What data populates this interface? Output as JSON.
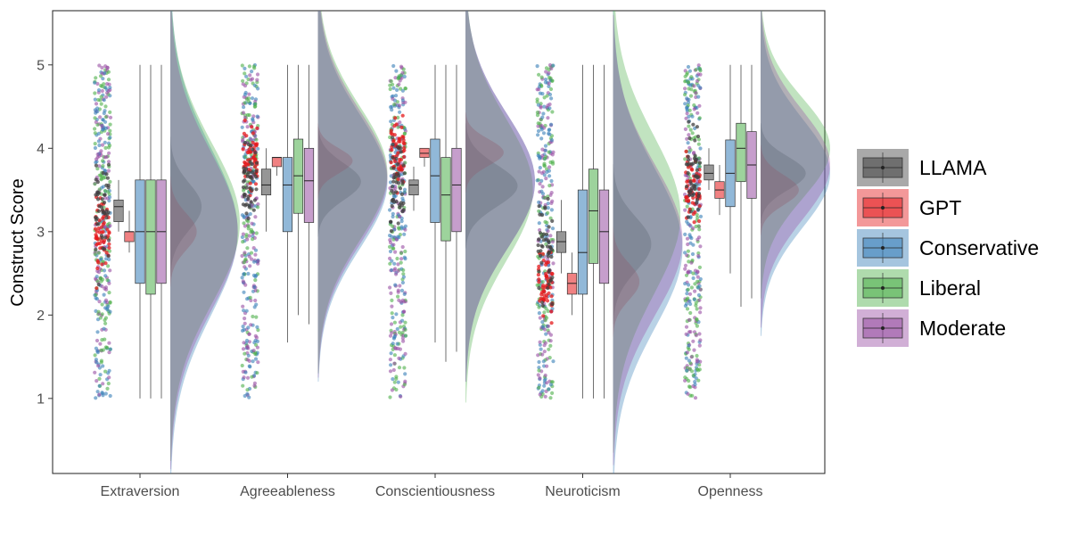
{
  "chart_data": {
    "type": "raincloud",
    "ylabel": "Construct Score",
    "xlabel": "",
    "ylim": [
      0.1,
      5.65
    ],
    "yticks": [
      1,
      2,
      3,
      4,
      5
    ],
    "grid": false,
    "legend_position": "right",
    "categories": [
      "Extraversion",
      "Agreeableness",
      "Conscientiousness",
      "Neuroticism",
      "Openness"
    ],
    "groups": [
      {
        "name": "LLAMA",
        "color": "#404040"
      },
      {
        "name": "GPT",
        "color": "#e41a1c"
      },
      {
        "name": "Conservative",
        "color": "#377eb8"
      },
      {
        "name": "Liberal",
        "color": "#4daf4a"
      },
      {
        "name": "Moderate",
        "color": "#984ea3"
      }
    ],
    "boxes": {
      "Extraversion": [
        {
          "min": 3.0,
          "q1": 3.12,
          "median": 3.3,
          "q3": 3.38,
          "max": 3.62
        },
        {
          "min": 2.75,
          "q1": 2.88,
          "median": 3.0,
          "q3": 3.0,
          "max": 3.25
        },
        {
          "min": 1.0,
          "q1": 2.38,
          "median": 3.0,
          "q3": 3.62,
          "max": 5.0
        },
        {
          "min": 1.0,
          "q1": 2.25,
          "median": 3.0,
          "q3": 3.62,
          "max": 5.0
        },
        {
          "min": 1.0,
          "q1": 2.38,
          "median": 3.0,
          "q3": 3.62,
          "max": 5.0
        }
      ],
      "Agreeableness": [
        {
          "min": 3.0,
          "q1": 3.44,
          "median": 3.56,
          "q3": 3.75,
          "max": 4.0
        },
        {
          "min": 3.67,
          "q1": 3.78,
          "median": 3.89,
          "q3": 3.89,
          "max": 3.89
        },
        {
          "min": 1.67,
          "q1": 3.0,
          "median": 3.56,
          "q3": 3.89,
          "max": 5.0
        },
        {
          "min": 2.0,
          "q1": 3.22,
          "median": 3.67,
          "q3": 4.11,
          "max": 5.0
        },
        {
          "min": 1.89,
          "q1": 3.11,
          "median": 3.61,
          "q3": 4.0,
          "max": 5.0
        }
      ],
      "Conscientiousness": [
        {
          "min": 3.25,
          "q1": 3.44,
          "median": 3.56,
          "q3": 3.62,
          "max": 3.78
        },
        {
          "min": 3.78,
          "q1": 3.89,
          "median": 3.94,
          "q3": 4.0,
          "max": 4.0
        },
        {
          "min": 1.67,
          "q1": 3.11,
          "median": 3.67,
          "q3": 4.11,
          "max": 5.0
        },
        {
          "min": 1.44,
          "q1": 2.89,
          "median": 3.44,
          "q3": 3.89,
          "max": 5.0
        },
        {
          "min": 1.56,
          "q1": 3.0,
          "median": 3.56,
          "q3": 4.0,
          "max": 5.0
        }
      ],
      "Neuroticism": [
        {
          "min": 2.5,
          "q1": 2.75,
          "median": 2.88,
          "q3": 3.0,
          "max": 3.38
        },
        {
          "min": 2.0,
          "q1": 2.25,
          "median": 2.38,
          "q3": 2.5,
          "max": 2.75
        },
        {
          "min": 1.0,
          "q1": 2.25,
          "median": 2.75,
          "q3": 3.5,
          "max": 5.0
        },
        {
          "min": 1.0,
          "q1": 2.62,
          "median": 3.25,
          "q3": 3.75,
          "max": 5.0
        },
        {
          "min": 1.0,
          "q1": 2.38,
          "median": 3.0,
          "q3": 3.5,
          "max": 5.0
        }
      ],
      "Openness": [
        {
          "min": 3.5,
          "q1": 3.62,
          "median": 3.7,
          "q3": 3.8,
          "max": 4.0
        },
        {
          "min": 3.2,
          "q1": 3.4,
          "median": 3.5,
          "q3": 3.6,
          "max": 3.8
        },
        {
          "min": 2.5,
          "q1": 3.3,
          "median": 3.7,
          "q3": 4.1,
          "max": 5.0
        },
        {
          "min": 2.1,
          "q1": 3.6,
          "median": 4.0,
          "q3": 4.3,
          "max": 5.0
        },
        {
          "min": 2.2,
          "q1": 3.4,
          "median": 3.8,
          "q3": 4.2,
          "max": 5.0
        }
      ]
    },
    "densities": {
      "Extraversion": [
        {
          "center": 3.3,
          "spread": 0.28,
          "height": 0.45
        },
        {
          "center": 3.0,
          "spread": 0.22,
          "height": 0.38
        },
        {
          "center": 3.0,
          "spread": 1.0,
          "height": 0.97
        },
        {
          "center": 3.1,
          "spread": 0.95,
          "height": 1.0
        },
        {
          "center": 3.0,
          "spread": 0.95,
          "height": 0.97
        }
      ],
      "Agreeableness": [
        {
          "center": 3.6,
          "spread": 0.22,
          "height": 0.62
        },
        {
          "center": 3.85,
          "spread": 0.15,
          "height": 0.5
        },
        {
          "center": 3.6,
          "spread": 0.8,
          "height": 1.0
        },
        {
          "center": 3.7,
          "spread": 0.8,
          "height": 1.0
        },
        {
          "center": 3.65,
          "spread": 0.8,
          "height": 1.0
        }
      ],
      "Conscientiousness": [
        {
          "center": 3.55,
          "spread": 0.25,
          "height": 0.75
        },
        {
          "center": 3.95,
          "spread": 0.16,
          "height": 0.55
        },
        {
          "center": 3.6,
          "spread": 0.8,
          "height": 1.0
        },
        {
          "center": 3.5,
          "spread": 0.85,
          "height": 0.97
        },
        {
          "center": 3.6,
          "spread": 0.8,
          "height": 1.0
        }
      ],
      "Neuroticism": [
        {
          "center": 2.85,
          "spread": 0.32,
          "height": 0.55
        },
        {
          "center": 2.4,
          "spread": 0.22,
          "height": 0.38
        },
        {
          "center": 2.8,
          "spread": 0.95,
          "height": 1.0
        },
        {
          "center": 3.2,
          "spread": 0.95,
          "height": 0.97
        },
        {
          "center": 2.9,
          "spread": 0.9,
          "height": 1.0
        }
      ],
      "Openness": [
        {
          "center": 3.7,
          "spread": 0.2,
          "height": 0.65
        },
        {
          "center": 3.5,
          "spread": 0.18,
          "height": 0.55
        },
        {
          "center": 3.7,
          "spread": 0.65,
          "height": 1.0
        },
        {
          "center": 4.0,
          "spread": 0.6,
          "height": 1.0
        },
        {
          "center": 3.8,
          "spread": 0.65,
          "height": 1.0
        }
      ]
    },
    "points": {
      "range": [
        1.0,
        5.0
      ],
      "centers": {
        "LLAMA": [
          3.3,
          3.6,
          3.55,
          2.85,
          3.7
        ],
        "GPT": [
          3.0,
          3.85,
          3.95,
          2.4,
          3.5
        ]
      }
    }
  }
}
